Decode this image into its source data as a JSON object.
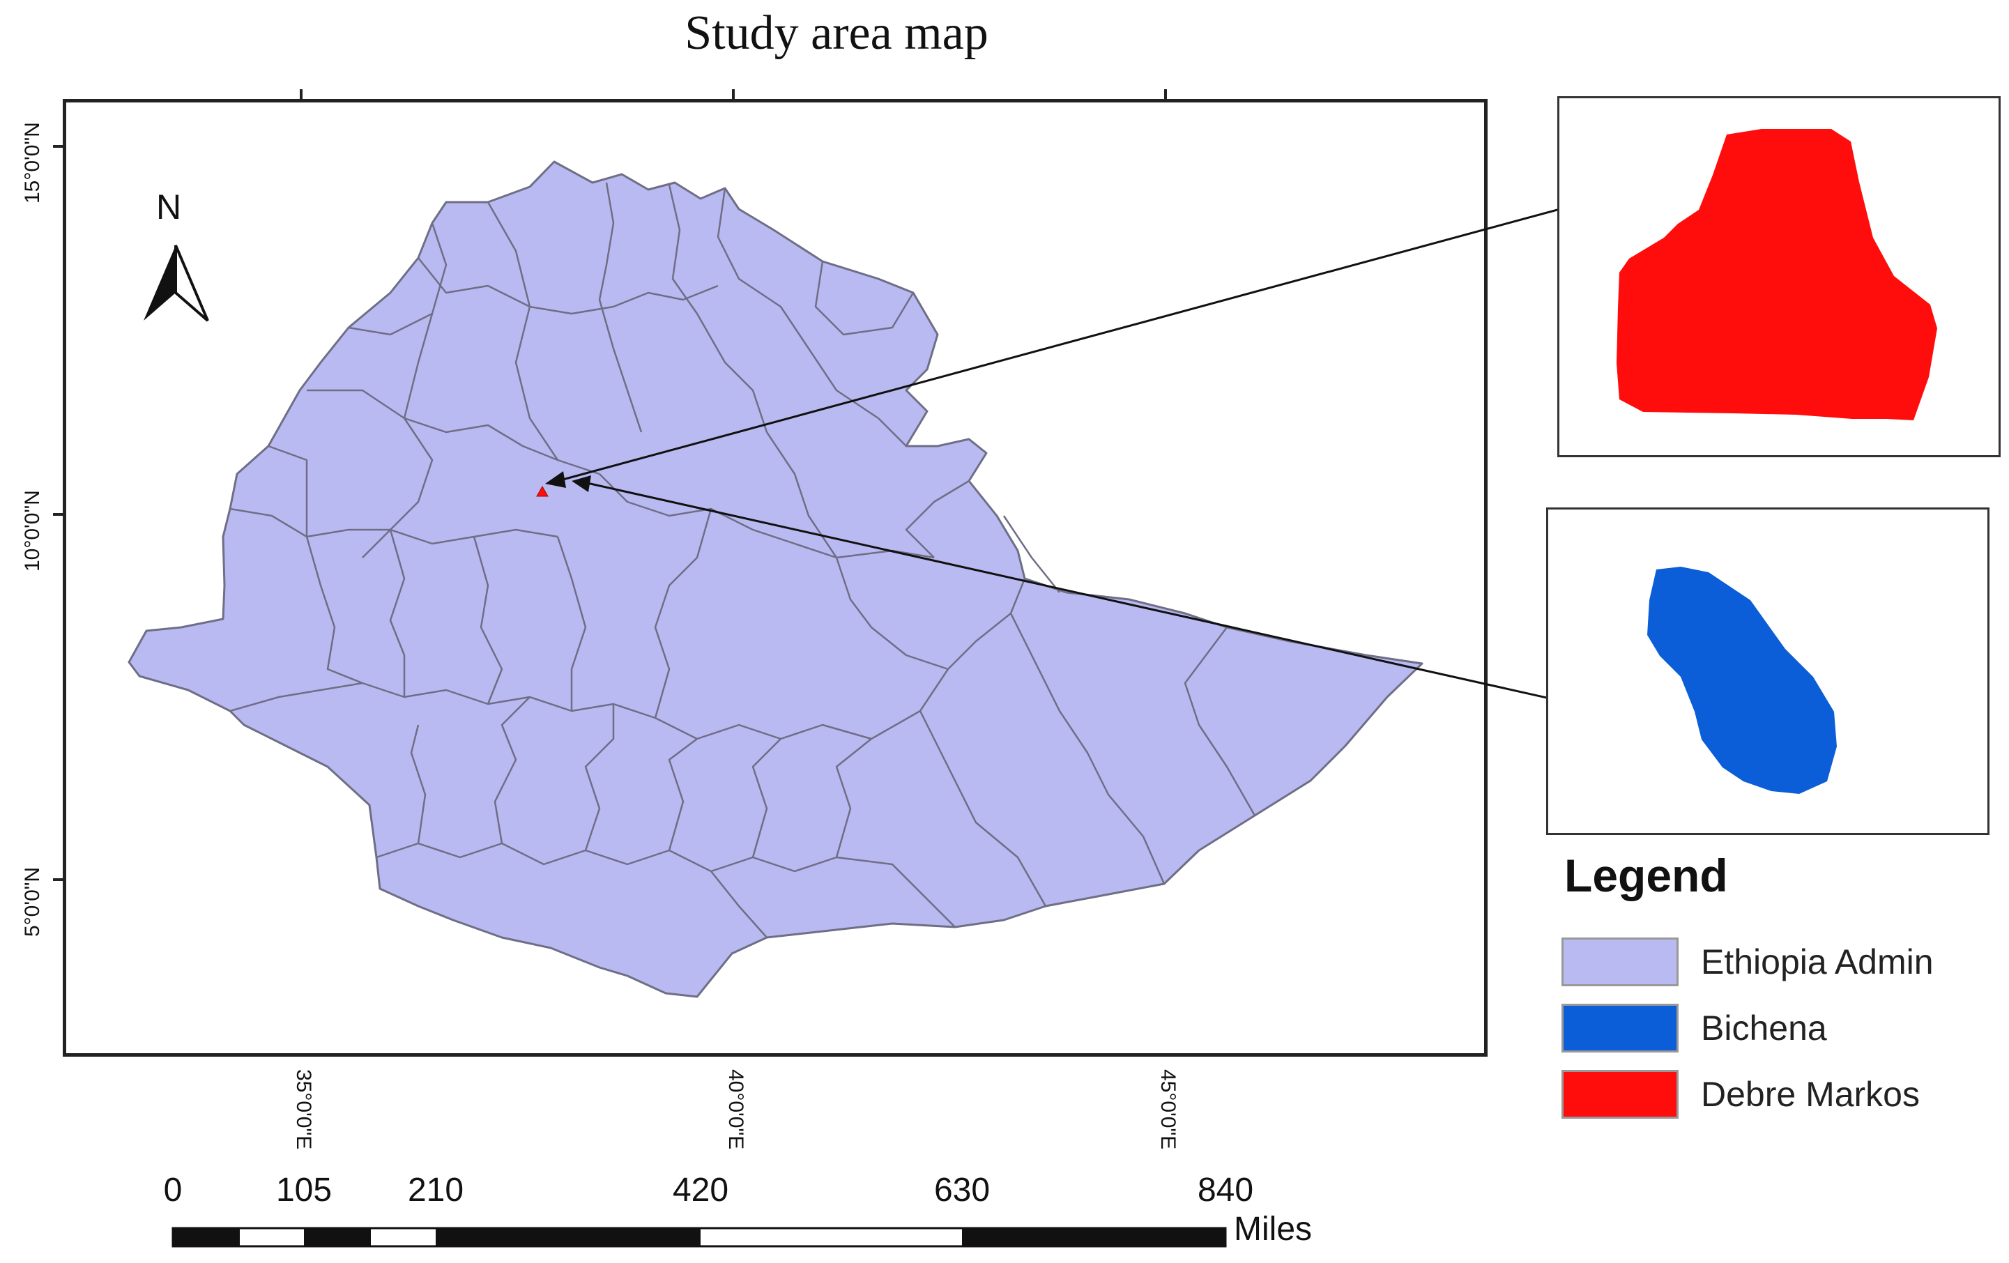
{
  "map": {
    "title": "Study area map",
    "north_label": "N",
    "lat_labels": [
      "15°0'0\"N",
      "10°0'0\"N",
      "5°0'0\"N"
    ],
    "lon_labels": [
      "35°0'0\"E",
      "40°0'0\"E",
      "45°0'0\"E"
    ],
    "colors": {
      "ethiopia": "#babaf2",
      "bichena": "#0b5ed8",
      "debre_markos": "#ff0c0c",
      "boundary": "#6e6e86"
    }
  },
  "legend": {
    "title": "Legend",
    "items": [
      {
        "label": "Ethiopia Admin",
        "color": "#babaf2"
      },
      {
        "label": "Bichena",
        "color": "#0b5ed8"
      },
      {
        "label": "Debre Markos",
        "color": "#ff0c0c"
      }
    ]
  },
  "scale_bar": {
    "labels": [
      "0",
      "105",
      "210",
      "420",
      "630",
      "840"
    ],
    "unit": "Miles"
  }
}
